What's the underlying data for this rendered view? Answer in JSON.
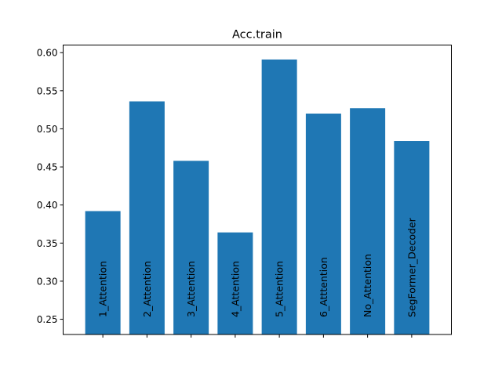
{
  "chart_data": {
    "type": "bar",
    "title": "Acc.train",
    "xlabel": "",
    "ylabel": "",
    "categories": [
      "1_Attention",
      "2_Attention",
      "3_Attention",
      "4_Attention",
      "5_Attention",
      "6_Atttention",
      "No_Attention",
      "SegFormer_Decoder"
    ],
    "values": [
      0.392,
      0.536,
      0.458,
      0.364,
      0.591,
      0.52,
      0.527,
      0.484
    ],
    "ylim": [
      0.23,
      0.61
    ],
    "yticks": [
      0.25,
      0.3,
      0.35,
      0.4,
      0.45,
      0.5,
      0.55,
      0.6
    ],
    "ytick_labels": [
      "0.25",
      "0.30",
      "0.35",
      "0.40",
      "0.45",
      "0.50",
      "0.55",
      "0.60"
    ],
    "bar_color": "#1f77b4",
    "category_labels_inside_bars": true,
    "grid": false,
    "legend": "none"
  }
}
